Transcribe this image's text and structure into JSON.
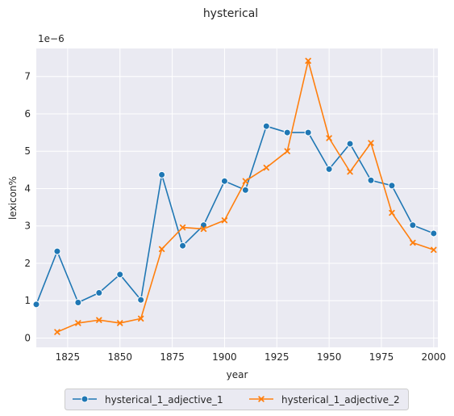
{
  "chart_data": {
    "type": "line",
    "title": "hysterical",
    "xlabel": "year",
    "ylabel": "lexicon%",
    "y_offset_label": "1e−6",
    "xlim": [
      1810,
      2002
    ],
    "ylim": [
      -0.25,
      7.75
    ],
    "x_ticks": [
      1825,
      1850,
      1875,
      1900,
      1925,
      1950,
      1975,
      2000
    ],
    "y_ticks": [
      0,
      1,
      2,
      3,
      4,
      5,
      6,
      7
    ],
    "grid": true,
    "legend_position": "bottom-center",
    "series": [
      {
        "name": "hysterical_1_adjective_1",
        "color": "#1f77b4",
        "marker": "circle",
        "x": [
          1810,
          1820,
          1830,
          1840,
          1850,
          1860,
          1870,
          1880,
          1890,
          1900,
          1910,
          1920,
          1930,
          1940,
          1950,
          1960,
          1970,
          1980,
          1990,
          2000
        ],
        "y": [
          0.9,
          2.32,
          0.95,
          1.21,
          1.7,
          1.02,
          4.37,
          2.47,
          3.02,
          4.2,
          3.96,
          5.67,
          5.5,
          5.5,
          4.52,
          5.2,
          4.22,
          4.08,
          3.02,
          2.8
        ]
      },
      {
        "name": "hysterical_1_adjective_2",
        "color": "#ff7f0e",
        "marker": "x",
        "x": [
          1820,
          1830,
          1840,
          1850,
          1860,
          1870,
          1880,
          1890,
          1900,
          1910,
          1920,
          1930,
          1940,
          1950,
          1960,
          1970,
          1980,
          1990,
          2000
        ],
        "y": [
          0.16,
          0.4,
          0.48,
          0.4,
          0.52,
          2.38,
          2.96,
          2.92,
          3.15,
          4.2,
          4.56,
          5.0,
          7.42,
          5.35,
          4.45,
          5.22,
          3.35,
          2.55,
          2.36
        ]
      }
    ]
  }
}
